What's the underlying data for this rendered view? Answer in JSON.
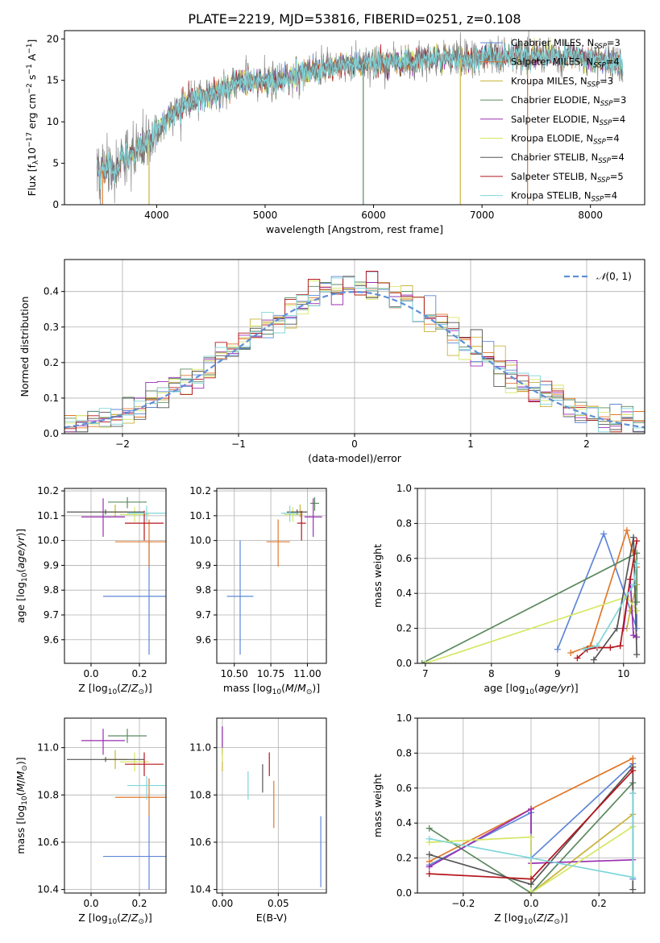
{
  "figure_title": "PLATE=2219, MJD=53816, FIBERID=0251, z=0.108",
  "colors": {
    "chabrier_miles": "#5f87d6",
    "salpeter_miles": "#e0782a",
    "kroupa_miles": "#c9b33a",
    "chabrier_elodie": "#5c8a5f",
    "salpeter_elodie": "#9a2eb3",
    "kroupa_elodie": "#d6e765",
    "chabrier_stelib": "#555555",
    "salpeter_stelib": "#b5141c",
    "kroupa_stelib": "#7fd6da",
    "data": "#808080",
    "normal": "#5f8fd6"
  },
  "chart_data": [
    {
      "id": "spectrum",
      "type": "line",
      "title": "",
      "xlabel": "wavelength [Angstrom, rest frame]",
      "ylabel": "Flux [f",
      "xlim": [
        3150,
        8500
      ],
      "ylim": [
        0,
        21
      ],
      "xticks": [
        4000,
        5000,
        6000,
        7000,
        8000
      ],
      "yticks": [
        0,
        5,
        10,
        15,
        20
      ],
      "grid": false,
      "legend_position": "right",
      "data_range": [
        3450,
        8300
      ],
      "data_anchors": {
        "x": [
          3450,
          3600,
          3800,
          3950,
          4100,
          4300,
          4500,
          4800,
          5000,
          5200,
          5500,
          5800,
          6000,
          6300,
          6600,
          6900,
          7200,
          7500,
          7800,
          8100,
          8300
        ],
        "y": [
          4.0,
          4.6,
          6.5,
          8.0,
          10.5,
          12.5,
          13.5,
          15.0,
          14.8,
          15.2,
          16.4,
          16.8,
          17.0,
          17.3,
          17.6,
          17.6,
          17.9,
          18.0,
          17.9,
          17.4,
          17.0
        ]
      },
      "noise": 1.3,
      "dropouts": [
        {
          "x": 3500,
          "color": "salpeter_miles"
        },
        {
          "x": 3930,
          "color": "kroupa_miles"
        },
        {
          "x": 5905,
          "color": "chabrier_elodie"
        },
        {
          "x": 6800,
          "color": "kroupa_miles"
        },
        {
          "x": 7420,
          "color": "salpeter_miles"
        }
      ],
      "legend": [
        {
          "label": "Chabrier MILES, N",
          "sub": "SSP",
          "suffix": "=3",
          "color": "chabrier_miles"
        },
        {
          "label": "Salpeter MILES, N",
          "sub": "SSP",
          "suffix": "=4",
          "color": "salpeter_miles"
        },
        {
          "label": "Kroupa MILES, N",
          "sub": "SSP",
          "suffix": "=3",
          "color": "kroupa_miles"
        },
        {
          "label": "Chabrier ELODIE, N",
          "sub": "SSP",
          "suffix": "=3",
          "color": "chabrier_elodie"
        },
        {
          "label": "Salpeter ELODIE, N",
          "sub": "SSP",
          "suffix": "=4",
          "color": "salpeter_elodie"
        },
        {
          "label": "Kroupa ELODIE, N",
          "sub": "SSP",
          "suffix": "=4",
          "color": "kroupa_elodie"
        },
        {
          "label": "Chabrier STELIB, N",
          "sub": "SSP",
          "suffix": "=4",
          "color": "chabrier_stelib"
        },
        {
          "label": "Salpeter STELIB, N",
          "sub": "SSP",
          "suffix": "=5",
          "color": "salpeter_stelib"
        },
        {
          "label": "Kroupa STELIB, N",
          "sub": "SSP",
          "suffix": "=4",
          "color": "kroupa_stelib"
        }
      ]
    },
    {
      "id": "residuals",
      "type": "histogram",
      "xlabel": "(data-model)/error",
      "ylabel": "Normed distribution",
      "xlim": [
        -2.5,
        2.5
      ],
      "ylim": [
        0,
        0.49
      ],
      "xticks": [
        -2,
        -1,
        0,
        1,
        2
      ],
      "yticks": [
        0.0,
        0.1,
        0.2,
        0.3,
        0.4
      ],
      "grid": true,
      "bins": 50,
      "legend_label": "(0, 1)",
      "legend_symbol": "𝒩",
      "legend_position": "top-right",
      "series_colors": [
        "chabrier_miles",
        "salpeter_miles",
        "kroupa_miles",
        "chabrier_elodie",
        "salpeter_elodie",
        "kroupa_elodie",
        "chabrier_stelib",
        "salpeter_stelib",
        "kroupa_stelib"
      ]
    },
    {
      "id": "age_vs_Z",
      "type": "errorbar",
      "xlabel": "Z [log",
      "ylabel": "age  [log",
      "xlim": [
        -0.11,
        0.31
      ],
      "ylim": [
        9.505,
        10.21
      ],
      "xticks": [
        0.0,
        0.2
      ],
      "yticks": [
        9.6,
        9.7,
        9.8,
        9.9,
        10.0,
        10.1,
        10.2
      ],
      "grid": true,
      "points": [
        {
          "x": 0.24,
          "y": 9.775,
          "xerr": 0.19,
          "yerr": [
            0.235,
            0.225
          ],
          "color": "chabrier_miles"
        },
        {
          "x": 0.24,
          "y": 9.995,
          "xerr": 0.14,
          "yerr": [
            0.1,
            0.09
          ],
          "color": "salpeter_miles"
        },
        {
          "x": 0.1,
          "y": 10.115,
          "xerr": 0.05,
          "yerr": [
            0.02,
            0.03
          ],
          "color": "kroupa_miles"
        },
        {
          "x": 0.15,
          "y": 10.155,
          "xerr": 0.08,
          "yerr": [
            0.025,
            0.02
          ],
          "color": "chabrier_elodie"
        },
        {
          "x": 0.05,
          "y": 10.095,
          "xerr": 0.09,
          "yerr": [
            0.08,
            0.075
          ],
          "color": "salpeter_elodie"
        },
        {
          "x": 0.18,
          "y": 10.105,
          "xerr": 0.06,
          "yerr": [
            0.03,
            0.03
          ],
          "color": "kroupa_elodie"
        },
        {
          "x": 0.06,
          "y": 10.115,
          "xerr": 0.16,
          "yerr": [
            0.01,
            0.01
          ],
          "color": "chabrier_stelib"
        },
        {
          "x": 0.22,
          "y": 10.07,
          "xerr": 0.08,
          "yerr": [
            0.07,
            0.05
          ],
          "color": "salpeter_stelib"
        },
        {
          "x": 0.23,
          "y": 10.11,
          "xerr": 0.08,
          "yerr": [
            0.035,
            0.03
          ],
          "color": "kroupa_stelib"
        }
      ]
    },
    {
      "id": "age_vs_mass",
      "type": "errorbar",
      "xlabel": "mass [log",
      "ylabel": "",
      "xlim": [
        10.38,
        11.13
      ],
      "ylim": [
        9.505,
        10.21
      ],
      "xticks": [
        10.5,
        10.75,
        11.0
      ],
      "yticks": [
        9.6,
        9.7,
        9.8,
        9.9,
        10.0,
        10.1,
        10.2
      ],
      "grid": true,
      "points": [
        {
          "x": 10.54,
          "y": 9.775,
          "xerr": 0.09,
          "yerr": [
            0.235,
            0.225
          ],
          "color": "chabrier_miles"
        },
        {
          "x": 10.8,
          "y": 9.995,
          "xerr": 0.08,
          "yerr": [
            0.1,
            0.09
          ],
          "color": "salpeter_miles"
        },
        {
          "x": 10.95,
          "y": 10.115,
          "xerr": 0.02,
          "yerr": [
            0.02,
            0.03
          ],
          "color": "kroupa_miles"
        },
        {
          "x": 11.05,
          "y": 10.15,
          "xerr": 0.03,
          "yerr": [
            0.03,
            0.025
          ],
          "color": "chabrier_elodie"
        },
        {
          "x": 11.04,
          "y": 10.095,
          "xerr": 0.06,
          "yerr": [
            0.08,
            0.075
          ],
          "color": "salpeter_elodie"
        },
        {
          "x": 10.9,
          "y": 10.105,
          "xerr": 0.06,
          "yerr": [
            0.03,
            0.03
          ],
          "color": "kroupa_elodie"
        },
        {
          "x": 10.93,
          "y": 10.115,
          "xerr": 0.07,
          "yerr": [
            0.01,
            0.01
          ],
          "color": "chabrier_stelib"
        },
        {
          "x": 10.96,
          "y": 10.07,
          "xerr": 0.03,
          "yerr": [
            0.07,
            0.05
          ],
          "color": "salpeter_stelib"
        },
        {
          "x": 10.88,
          "y": 10.11,
          "xerr": 0.06,
          "yerr": [
            0.035,
            0.03
          ],
          "color": "kroupa_stelib"
        }
      ]
    },
    {
      "id": "weight_vs_age",
      "type": "line",
      "xlabel": "age  [log",
      "ylabel": "mass weight",
      "xlim": [
        6.88,
        10.32
      ],
      "ylim": [
        0,
        1
      ],
      "xticks": [
        7,
        8,
        9,
        10
      ],
      "yticks": [
        0.0,
        0.2,
        0.4,
        0.6,
        0.8,
        1.0
      ],
      "grid": true,
      "series": [
        {
          "color": "chabrier_miles",
          "x": [
            9.0,
            9.7,
            10.2,
            10.2
          ],
          "y": [
            0.08,
            0.74,
            0.2,
            0.3
          ]
        },
        {
          "color": "salpeter_miles",
          "x": [
            9.2,
            9.5,
            10.05,
            10.2
          ],
          "y": [
            0.06,
            0.1,
            0.76,
            0.55
          ]
        },
        {
          "color": "kroupa_miles",
          "x": [
            10.05,
            10.1,
            10.2
          ],
          "y": [
            0.2,
            0.3,
            0.45
          ]
        },
        {
          "color": "chabrier_elodie",
          "x": [
            6.95,
            10.2,
            10.2
          ],
          "y": [
            0.0,
            0.63,
            0.35
          ]
        },
        {
          "color": "salpeter_elodie",
          "x": [
            10.0,
            10.1,
            10.15,
            10.2
          ],
          "y": [
            0.2,
            0.48,
            0.16,
            0.15
          ]
        },
        {
          "color": "kroupa_elodie",
          "x": [
            7.0,
            10.05,
            10.2
          ],
          "y": [
            0.0,
            0.38,
            0.3
          ]
        },
        {
          "color": "chabrier_stelib",
          "x": [
            9.55,
            9.9,
            10.15,
            10.2
          ],
          "y": [
            0.02,
            0.2,
            0.72,
            0.05
          ]
        },
        {
          "color": "salpeter_stelib",
          "x": [
            9.3,
            9.45,
            9.6,
            9.8,
            9.95,
            10.1,
            10.2
          ],
          "y": [
            0.03,
            0.08,
            0.09,
            0.09,
            0.1,
            0.48,
            0.7
          ]
        },
        {
          "color": "kroupa_stelib",
          "x": [
            9.4,
            9.6,
            10.15,
            10.2
          ],
          "y": [
            0.08,
            0.1,
            0.45,
            0.57
          ]
        }
      ]
    },
    {
      "id": "mass_vs_Z",
      "type": "errorbar",
      "xlabel": "Z [log",
      "ylabel": "mass [log",
      "xlim": [
        -0.11,
        0.31
      ],
      "ylim": [
        10.385,
        11.125
      ],
      "xticks": [
        0.0,
        0.2
      ],
      "yticks": [
        10.4,
        10.6,
        10.8,
        11.0
      ],
      "grid": true,
      "points": [
        {
          "x": 0.24,
          "y": 10.54,
          "xerr": 0.19,
          "yerr": [
            0.14,
            0.17
          ],
          "color": "chabrier_miles"
        },
        {
          "x": 0.24,
          "y": 10.79,
          "xerr": 0.14,
          "yerr": [
            0.08,
            0.08
          ],
          "color": "salpeter_miles"
        },
        {
          "x": 0.1,
          "y": 10.95,
          "xerr": 0.05,
          "yerr": [
            0.04,
            0.04
          ],
          "color": "kroupa_miles"
        },
        {
          "x": 0.15,
          "y": 11.05,
          "xerr": 0.08,
          "yerr": [
            0.03,
            0.03
          ],
          "color": "chabrier_elodie"
        },
        {
          "x": 0.05,
          "y": 11.03,
          "xerr": 0.09,
          "yerr": [
            0.06,
            0.05
          ],
          "color": "salpeter_elodie"
        },
        {
          "x": 0.18,
          "y": 10.94,
          "xerr": 0.06,
          "yerr": [
            0.04,
            0.04
          ],
          "color": "kroupa_elodie"
        },
        {
          "x": 0.06,
          "y": 10.95,
          "xerr": 0.16,
          "yerr": [
            0.01,
            0.01
          ],
          "color": "chabrier_stelib"
        },
        {
          "x": 0.22,
          "y": 10.93,
          "xerr": 0.08,
          "yerr": [
            0.05,
            0.05
          ],
          "color": "salpeter_stelib"
        },
        {
          "x": 0.23,
          "y": 10.84,
          "xerr": 0.08,
          "yerr": [
            0.06,
            0.04
          ],
          "color": "kroupa_stelib"
        }
      ]
    },
    {
      "id": "mass_vs_ebv",
      "type": "errorbar",
      "xlabel": "E(B-V)",
      "ylabel": "",
      "xlim": [
        -0.005,
        0.093
      ],
      "ylim": [
        10.385,
        11.125
      ],
      "xticks": [
        0.0,
        0.05
      ],
      "yticks": [
        10.4,
        10.6,
        10.8,
        11.0
      ],
      "grid": true,
      "points": [
        {
          "x": 0.088,
          "y": 10.56,
          "xerr": 0,
          "yerr": [
            0.15,
            0.15
          ],
          "color": "chabrier_miles"
        },
        {
          "x": 0.046,
          "y": 10.76,
          "xerr": 0,
          "yerr": [
            0.1,
            0.1
          ],
          "color": "salpeter_miles"
        },
        {
          "x": 0.0,
          "y": 10.95,
          "xerr": 0,
          "yerr": [
            0.05,
            0.04
          ],
          "color": "kroupa_miles"
        },
        {
          "x": 0.0,
          "y": 11.04,
          "xerr": 0,
          "yerr": [
            0.05,
            0.05
          ],
          "color": "chabrier_elodie"
        },
        {
          "x": 0.0,
          "y": 11.03,
          "xerr": 0,
          "yerr": [
            0.06,
            0.06
          ],
          "color": "salpeter_elodie"
        },
        {
          "x": 0.0,
          "y": 10.97,
          "xerr": 0,
          "yerr": [
            0.03,
            0.03
          ],
          "color": "kroupa_elodie"
        },
        {
          "x": 0.036,
          "y": 10.87,
          "xerr": 0,
          "yerr": [
            0.06,
            0.06
          ],
          "color": "chabrier_stelib"
        },
        {
          "x": 0.042,
          "y": 10.93,
          "xerr": 0,
          "yerr": [
            0.05,
            0.05
          ],
          "color": "salpeter_stelib"
        },
        {
          "x": 0.023,
          "y": 10.84,
          "xerr": 0,
          "yerr": [
            0.06,
            0.06
          ],
          "color": "kroupa_stelib"
        }
      ]
    },
    {
      "id": "weight_vs_Z",
      "type": "line",
      "xlabel": "Z [log",
      "ylabel": "mass weight",
      "xlim": [
        -0.335,
        0.335
      ],
      "ylim": [
        0,
        1
      ],
      "xticks": [
        -0.2,
        0.0,
        0.2
      ],
      "yticks": [
        0.0,
        0.2,
        0.4,
        0.6,
        0.8,
        1.0
      ],
      "grid": true,
      "series": [
        {
          "color": "chabrier_miles",
          "x": [
            -0.3,
            0.0,
            0.0,
            0.3,
            0.3
          ],
          "y": [
            0.16,
            0.46,
            0.2,
            0.74,
            0.08
          ]
        },
        {
          "color": "salpeter_miles",
          "x": [
            -0.3,
            0.0,
            0.3,
            0.3
          ],
          "y": [
            0.18,
            0.48,
            0.77,
            0.57
          ]
        },
        {
          "color": "kroupa_miles",
          "x": [
            0.0,
            0.3
          ],
          "y": [
            0.0,
            0.45
          ]
        },
        {
          "color": "chabrier_elodie",
          "x": [
            -0.3,
            0.0,
            0.3
          ],
          "y": [
            0.37,
            0.0,
            0.63
          ]
        },
        {
          "color": "salpeter_elodie",
          "x": [
            -0.3,
            0.0,
            0.0,
            0.3
          ],
          "y": [
            0.15,
            0.48,
            0.17,
            0.19
          ]
        },
        {
          "color": "kroupa_elodie",
          "x": [
            -0.3,
            0.0,
            0.0,
            0.3
          ],
          "y": [
            0.29,
            0.32,
            0.0,
            0.38
          ]
        },
        {
          "color": "chabrier_stelib",
          "x": [
            -0.3,
            0.0,
            0.3,
            0.3
          ],
          "y": [
            0.22,
            0.05,
            0.72,
            0.02
          ]
        },
        {
          "color": "salpeter_stelib",
          "x": [
            -0.3,
            0.0,
            0.3
          ],
          "y": [
            0.11,
            0.08,
            0.7
          ]
        },
        {
          "color": "kroupa_stelib",
          "x": [
            -0.3,
            0.0,
            0.3,
            0.3
          ],
          "y": [
            0.31,
            0.2,
            0.09,
            0.57
          ]
        }
      ]
    }
  ]
}
